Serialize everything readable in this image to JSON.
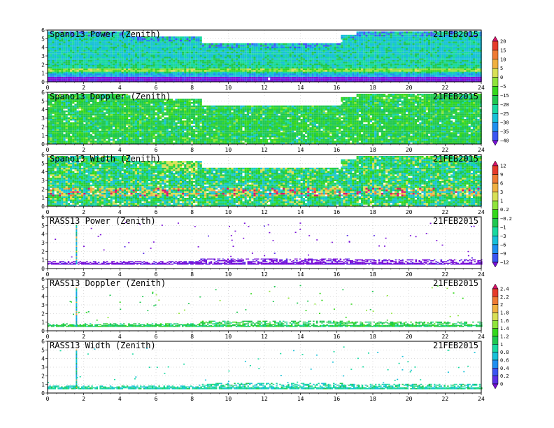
{
  "palette": [
    "#7a10d8",
    "#5b2fe6",
    "#3b55f2",
    "#1f8ff0",
    "#17c0d8",
    "#18d9a0",
    "#1ec850",
    "#34d81c",
    "#8fe43a",
    "#d8e055",
    "#f0b040",
    "#ef7a33",
    "#e63b2b",
    "#d8136a"
  ],
  "chart_data": [
    {
      "type": "heatmap",
      "title": "Spano13 Power (Zenith)",
      "date": "21FEB2015",
      "x_ticks": [
        0,
        2,
        4,
        6,
        8,
        10,
        12,
        14,
        16,
        18,
        20,
        22,
        24
      ],
      "y_ticks": [
        0,
        1,
        2,
        3,
        4,
        5,
        6
      ],
      "xlim": [
        0,
        24
      ],
      "ylim": [
        0,
        6
      ],
      "grid": true,
      "field": "radar_power"
    },
    {
      "type": "heatmap",
      "title": "Spano13 Doppler (Zenith)",
      "date": "21FEB2015",
      "x_ticks": [
        0,
        2,
        4,
        6,
        8,
        10,
        12,
        14,
        16,
        18,
        20,
        22,
        24
      ],
      "y_ticks": [
        0,
        1,
        2,
        3,
        4,
        5,
        6
      ],
      "xlim": [
        0,
        24
      ],
      "ylim": [
        0,
        6
      ],
      "grid": true,
      "field": "radar_doppler"
    },
    {
      "type": "heatmap",
      "title": "Spano13 Width (Zenith)",
      "date": "21FEB2015",
      "x_ticks": [
        0,
        2,
        4,
        6,
        8,
        10,
        12,
        14,
        16,
        18,
        20,
        22,
        24
      ],
      "y_ticks": [
        0,
        1,
        2,
        3,
        4,
        5,
        6
      ],
      "xlim": [
        0,
        24
      ],
      "ylim": [
        0,
        6
      ],
      "grid": true,
      "field": "radar_width"
    },
    {
      "type": "heatmap",
      "title": "RASS13 Power (Zenith)",
      "date": "21FEB2015",
      "x_ticks": [
        0,
        2,
        4,
        6,
        8,
        10,
        12,
        14,
        16,
        18,
        20,
        22,
        24
      ],
      "y_ticks": [
        0,
        1,
        2,
        3,
        4,
        5,
        6
      ],
      "xlim": [
        0,
        24
      ],
      "ylim": [
        0,
        6
      ],
      "grid": true,
      "field": "rass_power"
    },
    {
      "type": "heatmap",
      "title": "RASS13 Doppler (Zenith)",
      "date": "21FEB2015",
      "x_ticks": [
        0,
        2,
        4,
        6,
        8,
        10,
        12,
        14,
        16,
        18,
        20,
        22,
        24
      ],
      "y_ticks": [
        0,
        1,
        2,
        3,
        4,
        5,
        6
      ],
      "xlim": [
        0,
        24
      ],
      "ylim": [
        0,
        6
      ],
      "grid": true,
      "field": "rass_doppler"
    },
    {
      "type": "heatmap",
      "title": "RASS13 Width (Zenith)",
      "date": "21FEB2015",
      "x_ticks": [
        0,
        2,
        4,
        6,
        8,
        10,
        12,
        14,
        16,
        18,
        20,
        22,
        24
      ],
      "y_ticks": [
        0,
        1,
        2,
        3,
        4,
        5,
        6
      ],
      "xlim": [
        0,
        24
      ],
      "ylim": [
        0,
        6
      ],
      "grid": true,
      "field": "rass_width"
    }
  ],
  "colorbars": [
    {
      "labels": [
        "20",
        "15",
        "10",
        "5",
        "0",
        "−5",
        "−15",
        "−20",
        "−25",
        "−30",
        "−35",
        "−40"
      ],
      "colors": [
        "#d8136a",
        "#e63b2b",
        "#ef7a33",
        "#f0b040",
        "#d8e055",
        "#8fe43a",
        "#34d81c",
        "#1ec850",
        "#18d9a0",
        "#17c0d8",
        "#1f8ff0",
        "#3b55f2",
        "#7a10d8"
      ]
    },
    {
      "labels": [
        "12",
        "9",
        "6",
        "3",
        "1",
        "0.2",
        "−0.2",
        "−1",
        "−3",
        "−6",
        "−9",
        "−12"
      ],
      "colors": [
        "#d8136a",
        "#e63b2b",
        "#ef7a33",
        "#f0b040",
        "#d8e055",
        "#8fe43a",
        "#34d81c",
        "#1ec850",
        "#18d9a0",
        "#17c0d8",
        "#1f8ff0",
        "#3b55f2",
        "#7a10d8"
      ]
    },
    {
      "labels": [
        "2.4",
        "2.2",
        "2",
        "1.8",
        "1.6",
        "1.4",
        "1.2",
        "1",
        "0.8",
        "0.6",
        "0.4",
        "0.2",
        "0"
      ],
      "colors": [
        "#d8136a",
        "#e63b2b",
        "#ef7a33",
        "#f0b040",
        "#d8e055",
        "#8fe43a",
        "#34d81c",
        "#1ec850",
        "#18d9a0",
        "#17c0d8",
        "#1f8ff0",
        "#3b55f2",
        "#5b2fe6",
        "#7a10d8"
      ]
    }
  ]
}
